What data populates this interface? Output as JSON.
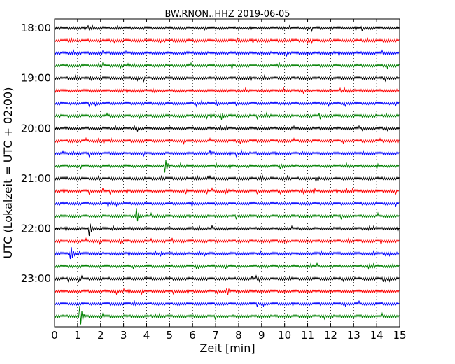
{
  "chart_data": {
    "type": "line",
    "title": "BW.RNON..HHZ 2019-06-05",
    "xlabel": "Zeit  [min]",
    "ylabel": "UTC (Lokalzeit = UTC + 02:00)",
    "xlim": [
      0,
      15
    ],
    "x_ticks": [
      "0",
      "1",
      "2",
      "3",
      "4",
      "5",
      "6",
      "7",
      "8",
      "9",
      "10",
      "11",
      "12",
      "13",
      "14",
      "15"
    ],
    "y_ticks": [
      "18:00",
      "19:00",
      "20:00",
      "21:00",
      "22:00",
      "23:00"
    ],
    "row_start_times": [
      "18:00",
      "18:15",
      "18:30",
      "18:45",
      "19:00",
      "19:15",
      "19:30",
      "19:45",
      "20:00",
      "20:15",
      "20:30",
      "20:45",
      "21:00",
      "21:15",
      "21:30",
      "21:45",
      "22:00",
      "22:15",
      "22:30",
      "22:45",
      "23:00",
      "23:15",
      "23:30",
      "23:45"
    ],
    "series_colors": [
      "#000000",
      "#ff0000",
      "#0000ff",
      "#008000"
    ],
    "vertical_grid": "dotted",
    "legend": "none",
    "events": [
      {
        "row": 0,
        "minute": 1.45,
        "amplitude": 0.3
      },
      {
        "row": 0,
        "minute": 6.5,
        "amplitude": 0.25
      },
      {
        "row": 1,
        "minute": 11.0,
        "amplitude": 0.28
      },
      {
        "row": 3,
        "minute": 3.2,
        "amplitude": 0.25
      },
      {
        "row": 5,
        "minute": 4.3,
        "amplitude": 0.25
      },
      {
        "row": 7,
        "minute": 7.25,
        "amplitude": 0.45
      },
      {
        "row": 9,
        "minute": 8.1,
        "amplitude": 0.2
      },
      {
        "row": 10,
        "minute": 6.75,
        "amplitude": 0.4
      },
      {
        "row": 11,
        "minute": 4.8,
        "amplitude": 0.9
      },
      {
        "row": 11,
        "minute": 9.8,
        "amplitude": 0.42
      },
      {
        "row": 11,
        "minute": 14.0,
        "amplitude": 0.35
      },
      {
        "row": 13,
        "minute": 7.45,
        "amplitude": 0.35
      },
      {
        "row": 15,
        "minute": 0.85,
        "amplitude": 0.2
      },
      {
        "row": 15,
        "minute": 3.55,
        "amplitude": 0.95
      },
      {
        "row": 16,
        "minute": 1.5,
        "amplitude": 0.85
      },
      {
        "row": 18,
        "minute": 0.7,
        "amplitude": 0.95
      },
      {
        "row": 19,
        "minute": 13.65,
        "amplitude": 0.3
      },
      {
        "row": 21,
        "minute": 7.5,
        "amplitude": 0.55
      },
      {
        "row": 23,
        "minute": 1.1,
        "amplitude": 1.3
      }
    ]
  }
}
